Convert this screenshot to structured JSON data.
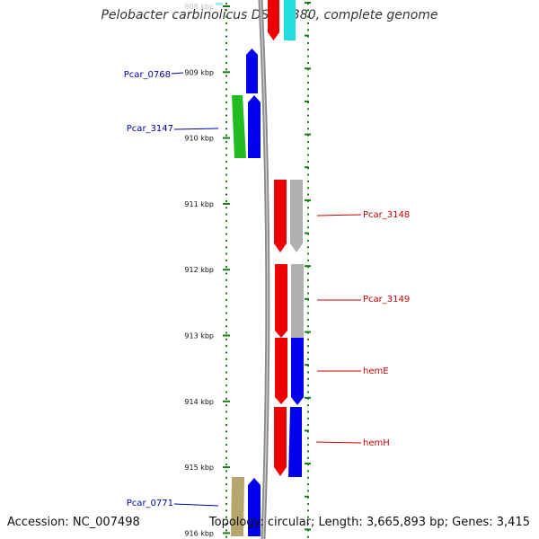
{
  "title": "Pelobacter carbinolicus DSM 2380, complete genome",
  "footer": {
    "accession": "Accession: NC_007498",
    "summary": "Topology: circular; Length: 3,665,893 bp; Genes: 3,415"
  },
  "axis": {
    "ticks": [
      "908 kbp",
      "909 kbp",
      "910 kbp",
      "911 kbp",
      "912 kbp",
      "913 kbp",
      "914 kbp",
      "915 kbp",
      "916 kbp"
    ]
  },
  "gene_labels": {
    "left": [
      "Pcar_0768",
      "Pcar_3147",
      "Pcar_0771"
    ],
    "right": [
      "Pcar_3148",
      "Pcar_3149",
      "hemE",
      "hemH"
    ]
  },
  "colors": {
    "forward_label": "#0000aa",
    "reverse_label": "#cc0000",
    "blue_gene": "#0000ee",
    "green_gene": "#22bb22",
    "red_gene": "#ee0000",
    "grey_gene": "#b0b0b0",
    "cyan_gene": "#22dddd",
    "tan_gene": "#b5a66e",
    "tick_green": "#1a7a1a"
  }
}
